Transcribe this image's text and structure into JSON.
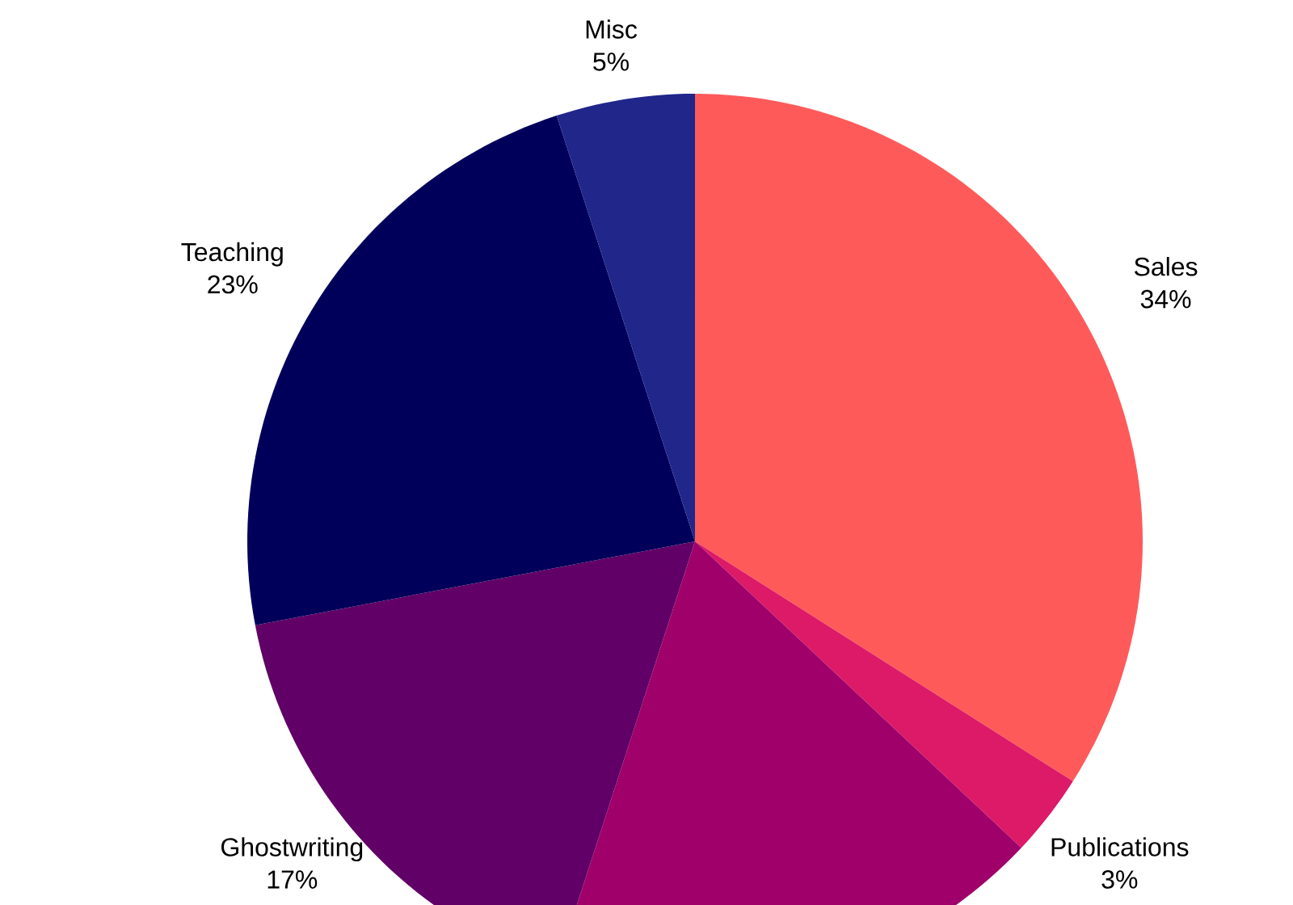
{
  "chart_data": {
    "type": "pie",
    "categories": [
      "Sales",
      "Publications",
      null,
      "Ghostwriting",
      "Teaching",
      "Misc"
    ],
    "values": [
      34,
      3,
      18,
      17,
      23,
      5
    ],
    "value_labels": [
      "34%",
      "3%",
      null,
      "17%",
      "23%",
      "5%"
    ],
    "colors": [
      "#ff5a5a",
      "#dc1a68",
      "#a0006a",
      "#610066",
      "#00005a",
      "#20268a"
    ]
  }
}
